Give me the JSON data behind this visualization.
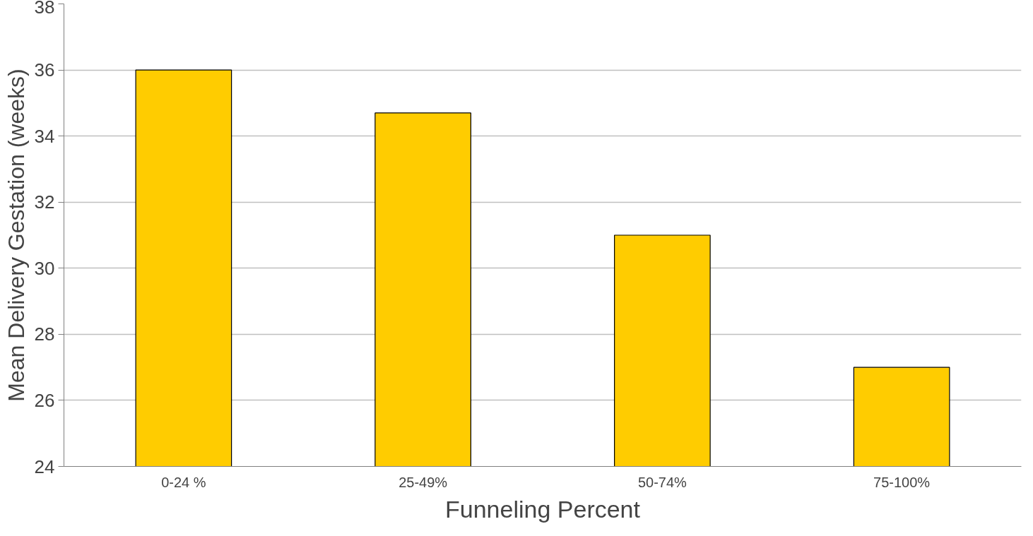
{
  "chart_data": {
    "type": "bar",
    "xlabel": "Funneling Percent",
    "ylabel": "Mean Delivery Gestation (weeks)",
    "categories": [
      "0-24 %",
      "25-49%",
      "50-74%",
      "75-100%"
    ],
    "values": [
      36,
      34.7,
      31,
      27
    ],
    "color": "#ffcc00",
    "ylim": [
      24,
      38
    ],
    "yticks": [
      24,
      26,
      28,
      30,
      32,
      34,
      36,
      38
    ],
    "grid": "y"
  }
}
